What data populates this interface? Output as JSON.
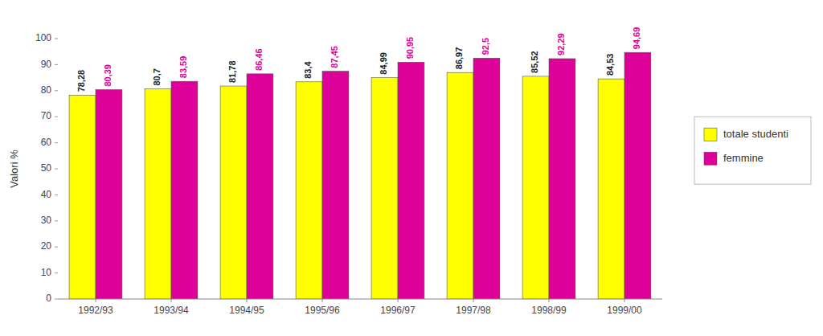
{
  "chart_data": {
    "type": "bar",
    "ylabel": "Valori %",
    "categories": [
      "1992/93",
      "1993/94",
      "1994/95",
      "1995/96",
      "1996/97",
      "1997/98",
      "1998/99",
      "1999/00"
    ],
    "series": [
      {
        "name": "totale studenti",
        "color": "#FFFF00",
        "values": [
          78.28,
          80.7,
          81.78,
          83.4,
          84.99,
          86.97,
          85.52,
          84.53
        ],
        "value_labels": [
          "78,28",
          "80,7",
          "81,78",
          "83,4",
          "84,99",
          "86,97",
          "85,52",
          "84,53"
        ]
      },
      {
        "name": "femmine",
        "color": "#DD0099",
        "values": [
          80.39,
          83.59,
          86.46,
          87.45,
          90.95,
          92.5,
          92.29,
          94.69
        ],
        "value_labels": [
          "80,39",
          "83,59",
          "86,46",
          "87,45",
          "90,95",
          "92,5",
          "92,29",
          "94,69"
        ]
      }
    ],
    "ylim": [
      0,
      100
    ],
    "yticks": [
      0,
      10,
      20,
      30,
      40,
      50,
      60,
      70,
      80,
      90,
      100
    ],
    "grid": false,
    "legend": "right",
    "data_labels": true
  }
}
